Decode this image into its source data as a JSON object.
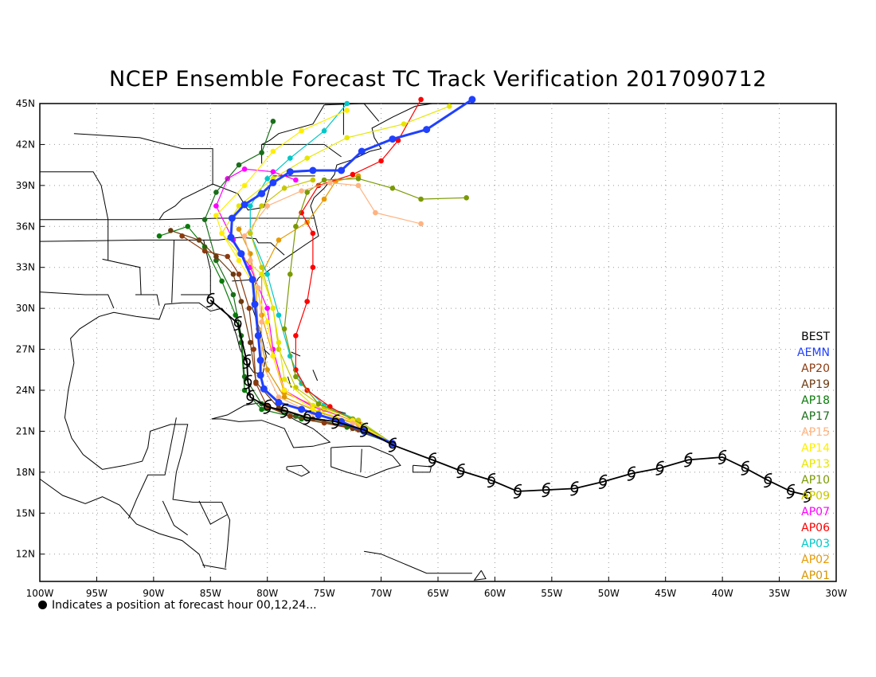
{
  "title": "NCEP Ensemble Forecast TC Track Verification 2017090712",
  "footnote": "Indicates a position at forecast hour 00,12,24...",
  "axes": {
    "lon_range": [
      -100,
      -30
    ],
    "lat_range": [
      10,
      45
    ],
    "lon_labels": [
      "100W",
      "95W",
      "90W",
      "85W",
      "80W",
      "75W",
      "70W",
      "65W",
      "60W",
      "55W",
      "50W",
      "45W",
      "40W",
      "35W",
      "30W"
    ],
    "lat_labels": [
      "12N",
      "15N",
      "18N",
      "21N",
      "24N",
      "27N",
      "30N",
      "33N",
      "36N",
      "39N",
      "42N",
      "45N"
    ]
  },
  "legend": [
    {
      "label": "BEST",
      "color": "#000000"
    },
    {
      "label": "AEMN",
      "color": "#2040ff"
    },
    {
      "label": "AP20",
      "color": "#8b3a0f"
    },
    {
      "label": "AP19",
      "color": "#6b3a10"
    },
    {
      "label": "AP18",
      "color": "#0a7a0a"
    },
    {
      "label": "AP17",
      "color": "#1a6e1a"
    },
    {
      "label": "AP15",
      "color": "#ffb380"
    },
    {
      "label": "AP14",
      "color": "#ffee00"
    },
    {
      "label": "AP13",
      "color": "#e6e600"
    },
    {
      "label": "AP10",
      "color": "#7a9a00"
    },
    {
      "label": "AP09",
      "color": "#c8c800"
    },
    {
      "label": "AP07",
      "color": "#ff00ff"
    },
    {
      "label": "AP06",
      "color": "#ff0000"
    },
    {
      "label": "AP03",
      "color": "#00c8c8"
    },
    {
      "label": "AP02",
      "color": "#e89a00"
    },
    {
      "label": "AP01",
      "color": "#d99600"
    }
  ],
  "chart_data": {
    "type": "line",
    "x_unit": "longitude (deg, negative = W)",
    "y_unit": "latitude (deg N)",
    "series": [
      {
        "name": "BEST",
        "color": "#000000",
        "marker": "hurricane",
        "points": [
          [
            -32.5,
            16.3
          ],
          [
            -34.0,
            16.6
          ],
          [
            -36.0,
            17.4
          ],
          [
            -38.0,
            18.3
          ],
          [
            -40.0,
            19.1
          ],
          [
            -43.0,
            18.9
          ],
          [
            -45.5,
            18.3
          ],
          [
            -48.0,
            17.9
          ],
          [
            -50.5,
            17.3
          ],
          [
            -53.0,
            16.8
          ],
          [
            -55.5,
            16.7
          ],
          [
            -58.0,
            16.6
          ],
          [
            -60.3,
            17.4
          ],
          [
            -63.0,
            18.1
          ],
          [
            -65.5,
            18.9
          ],
          [
            -69.0,
            20.0
          ],
          [
            -71.5,
            21.1
          ],
          [
            -74.0,
            21.7
          ],
          [
            -76.5,
            22.0
          ],
          [
            -78.5,
            22.5
          ],
          [
            -80.0,
            22.8
          ],
          [
            -81.5,
            23.5
          ],
          [
            -81.7,
            24.6
          ],
          [
            -81.8,
            26.1
          ],
          [
            -82.6,
            28.9
          ],
          [
            -85.0,
            30.6
          ]
        ]
      },
      {
        "name": "AEMN",
        "color": "#2040ff",
        "points": [
          [
            -69.0,
            20.1
          ],
          [
            -71.5,
            21.0
          ],
          [
            -73.5,
            21.7
          ],
          [
            -75.5,
            22.2
          ],
          [
            -77.0,
            22.6
          ],
          [
            -79.0,
            23.1
          ],
          [
            -80.3,
            24.1
          ],
          [
            -80.6,
            25.1
          ],
          [
            -80.6,
            26.2
          ],
          [
            -80.8,
            28.0
          ],
          [
            -81.1,
            30.3
          ],
          [
            -81.3,
            32.1
          ],
          [
            -82.3,
            34.0
          ],
          [
            -83.2,
            35.2
          ],
          [
            -83.1,
            36.6
          ],
          [
            -82.0,
            37.6
          ],
          [
            -80.5,
            38.4
          ],
          [
            -79.5,
            39.2
          ],
          [
            -78.0,
            40.0
          ],
          [
            -76.0,
            40.1
          ],
          [
            -73.5,
            40.1
          ],
          [
            -71.7,
            41.5
          ],
          [
            -69.0,
            42.4
          ],
          [
            -66.0,
            43.1
          ],
          [
            -62.0,
            45.3
          ]
        ]
      },
      {
        "name": "AP20",
        "color": "#8b3a0f",
        "points": [
          [
            -69.0,
            20.1
          ],
          [
            -72.0,
            21.1
          ],
          [
            -75.0,
            21.6
          ],
          [
            -78.0,
            22.1
          ],
          [
            -80.0,
            22.8
          ],
          [
            -81.0,
            24.5
          ],
          [
            -81.2,
            27.0
          ],
          [
            -81.6,
            30.0
          ],
          [
            -82.5,
            32.5
          ],
          [
            -83.5,
            33.8
          ],
          [
            -85.5,
            34.2
          ],
          [
            -87.5,
            35.3
          ]
        ]
      },
      {
        "name": "AP19",
        "color": "#6b3a10",
        "points": [
          [
            -69.0,
            20.1
          ],
          [
            -72.5,
            21.2
          ],
          [
            -76.0,
            21.9
          ],
          [
            -79.0,
            22.7
          ],
          [
            -81.0,
            24.6
          ],
          [
            -81.5,
            27.5
          ],
          [
            -82.3,
            30.5
          ],
          [
            -83.0,
            32.5
          ],
          [
            -84.5,
            33.8
          ],
          [
            -86.0,
            35.0
          ],
          [
            -88.5,
            35.7
          ]
        ]
      },
      {
        "name": "AP18",
        "color": "#0a7a0a",
        "points": [
          [
            -69.0,
            20.1
          ],
          [
            -73.0,
            21.3
          ],
          [
            -77.0,
            21.9
          ],
          [
            -80.5,
            22.6
          ],
          [
            -82.0,
            24.0
          ],
          [
            -82.3,
            27.5
          ],
          [
            -82.8,
            29.5
          ],
          [
            -84.0,
            32.0
          ],
          [
            -85.5,
            34.5
          ],
          [
            -87.0,
            36.0
          ],
          [
            -89.5,
            35.3
          ]
        ]
      },
      {
        "name": "AP17",
        "color": "#1a6e1a",
        "points": [
          [
            -69.0,
            20.1
          ],
          [
            -73.0,
            21.4
          ],
          [
            -77.5,
            22.1
          ],
          [
            -80.5,
            23.0
          ],
          [
            -82.0,
            25.0
          ],
          [
            -82.3,
            28.0
          ],
          [
            -83.0,
            31.0
          ],
          [
            -84.5,
            33.5
          ],
          [
            -85.5,
            36.5
          ],
          [
            -84.5,
            38.5
          ],
          [
            -82.5,
            40.5
          ],
          [
            -80.5,
            41.4
          ],
          [
            -79.5,
            43.7
          ]
        ]
      },
      {
        "name": "AP15",
        "color": "#ffb380",
        "points": [
          [
            -69.0,
            20.1
          ],
          [
            -72.5,
            21.6
          ],
          [
            -76.0,
            22.3
          ],
          [
            -79.0,
            23.5
          ],
          [
            -80.5,
            26.0
          ],
          [
            -80.5,
            29.0
          ],
          [
            -80.8,
            31.5
          ],
          [
            -81.5,
            33.5
          ],
          [
            -82.0,
            35.3
          ],
          [
            -80.0,
            37.5
          ],
          [
            -77.0,
            38.6
          ],
          [
            -74.5,
            39.2
          ],
          [
            -72.0,
            39.0
          ],
          [
            -70.5,
            37.0
          ],
          [
            -66.5,
            36.2
          ]
        ]
      },
      {
        "name": "AP14",
        "color": "#ffee00",
        "points": [
          [
            -69.0,
            20.1
          ],
          [
            -72.5,
            21.7
          ],
          [
            -76.0,
            22.6
          ],
          [
            -78.5,
            24.0
          ],
          [
            -79.5,
            26.5
          ],
          [
            -80.0,
            29.0
          ],
          [
            -81.0,
            31.5
          ],
          [
            -82.5,
            33.5
          ],
          [
            -84.0,
            35.5
          ],
          [
            -84.5,
            36.8
          ],
          [
            -82.0,
            39.0
          ],
          [
            -79.5,
            41.5
          ],
          [
            -77.0,
            43.0
          ],
          [
            -73.0,
            44.5
          ]
        ]
      },
      {
        "name": "AP13",
        "color": "#e6e600",
        "points": [
          [
            -69.0,
            20.1
          ],
          [
            -72.5,
            21.8
          ],
          [
            -76.0,
            22.9
          ],
          [
            -78.5,
            24.8
          ],
          [
            -79.0,
            27.5
          ],
          [
            -79.5,
            30.0
          ],
          [
            -80.5,
            32.5
          ],
          [
            -82.5,
            34.0
          ],
          [
            -84.0,
            35.5
          ],
          [
            -82.5,
            37.5
          ],
          [
            -79.5,
            39.5
          ],
          [
            -76.5,
            41.0
          ],
          [
            -73.0,
            42.5
          ],
          [
            -68.0,
            43.5
          ],
          [
            -64.0,
            44.8
          ]
        ]
      },
      {
        "name": "AP10",
        "color": "#7a9a00",
        "points": [
          [
            -69.0,
            20.1
          ],
          [
            -72.5,
            21.9
          ],
          [
            -75.5,
            23.0
          ],
          [
            -77.5,
            25.0
          ],
          [
            -78.5,
            28.5
          ],
          [
            -78.0,
            32.5
          ],
          [
            -77.5,
            36.0
          ],
          [
            -76.5,
            38.5
          ],
          [
            -75.0,
            39.4
          ],
          [
            -72.0,
            39.5
          ],
          [
            -69.0,
            38.8
          ],
          [
            -66.5,
            38.0
          ],
          [
            -62.5,
            38.1
          ]
        ]
      },
      {
        "name": "AP09",
        "color": "#c8c800",
        "points": [
          [
            -69.0,
            20.1
          ],
          [
            -72.0,
            21.8
          ],
          [
            -75.0,
            22.7
          ],
          [
            -77.5,
            24.2
          ],
          [
            -79.0,
            27.0
          ],
          [
            -79.5,
            30.0
          ],
          [
            -80.5,
            33.0
          ],
          [
            -81.5,
            35.5
          ],
          [
            -80.5,
            37.5
          ],
          [
            -78.5,
            38.8
          ],
          [
            -76.0,
            39.4
          ]
        ]
      },
      {
        "name": "AP07",
        "color": "#ff00ff",
        "points": [
          [
            -69.0,
            20.1
          ],
          [
            -72.5,
            21.8
          ],
          [
            -76.0,
            22.8
          ],
          [
            -78.5,
            24.0
          ],
          [
            -79.5,
            27.0
          ],
          [
            -80.0,
            30.0
          ],
          [
            -81.5,
            33.0
          ],
          [
            -83.0,
            35.0
          ],
          [
            -84.5,
            37.5
          ],
          [
            -83.5,
            39.5
          ],
          [
            -82.0,
            40.2
          ],
          [
            -79.5,
            40.0
          ],
          [
            -77.5,
            39.4
          ]
        ]
      },
      {
        "name": "AP06",
        "color": "#ff0000",
        "points": [
          [
            -69.0,
            20.1
          ],
          [
            -72.0,
            21.6
          ],
          [
            -74.5,
            22.8
          ],
          [
            -76.5,
            24.0
          ],
          [
            -77.5,
            25.5
          ],
          [
            -77.5,
            28.0
          ],
          [
            -76.5,
            30.5
          ],
          [
            -76.0,
            33.0
          ],
          [
            -76.0,
            35.5
          ],
          [
            -77.0,
            37.0
          ],
          [
            -75.5,
            39.0
          ],
          [
            -72.5,
            39.8
          ],
          [
            -70.0,
            40.8
          ],
          [
            -68.5,
            42.3
          ],
          [
            -66.5,
            45.3
          ]
        ]
      },
      {
        "name": "AP03",
        "color": "#00c8c8",
        "points": [
          [
            -69.0,
            20.1
          ],
          [
            -72.0,
            21.8
          ],
          [
            -75.0,
            22.9
          ],
          [
            -77.0,
            24.5
          ],
          [
            -78.0,
            26.5
          ],
          [
            -79.0,
            29.5
          ],
          [
            -80.0,
            32.5
          ],
          [
            -81.5,
            35.5
          ],
          [
            -81.5,
            37.5
          ],
          [
            -80.0,
            39.5
          ],
          [
            -78.0,
            41.0
          ],
          [
            -75.0,
            43.0
          ],
          [
            -73.0,
            45.0
          ]
        ]
      },
      {
        "name": "AP02",
        "color": "#e89a00",
        "points": [
          [
            -69.0,
            20.1
          ],
          [
            -72.0,
            21.6
          ],
          [
            -75.0,
            22.6
          ],
          [
            -78.5,
            23.8
          ],
          [
            -79.5,
            26.5
          ],
          [
            -80.5,
            29.5
          ],
          [
            -80.5,
            32.5
          ],
          [
            -79.0,
            35.0
          ],
          [
            -76.5,
            36.3
          ],
          [
            -75.0,
            38.0
          ],
          [
            -74.0,
            39.3
          ],
          [
            -72.0,
            39.7
          ]
        ]
      },
      {
        "name": "AP01",
        "color": "#d99600",
        "points": [
          [
            -69.0,
            20.1
          ],
          [
            -72.0,
            21.5
          ],
          [
            -75.5,
            22.4
          ],
          [
            -78.5,
            23.5
          ],
          [
            -80.0,
            25.5
          ],
          [
            -80.8,
            28.5
          ],
          [
            -81.0,
            31.5
          ],
          [
            -81.5,
            34.0
          ],
          [
            -82.5,
            35.8
          ]
        ]
      }
    ]
  }
}
